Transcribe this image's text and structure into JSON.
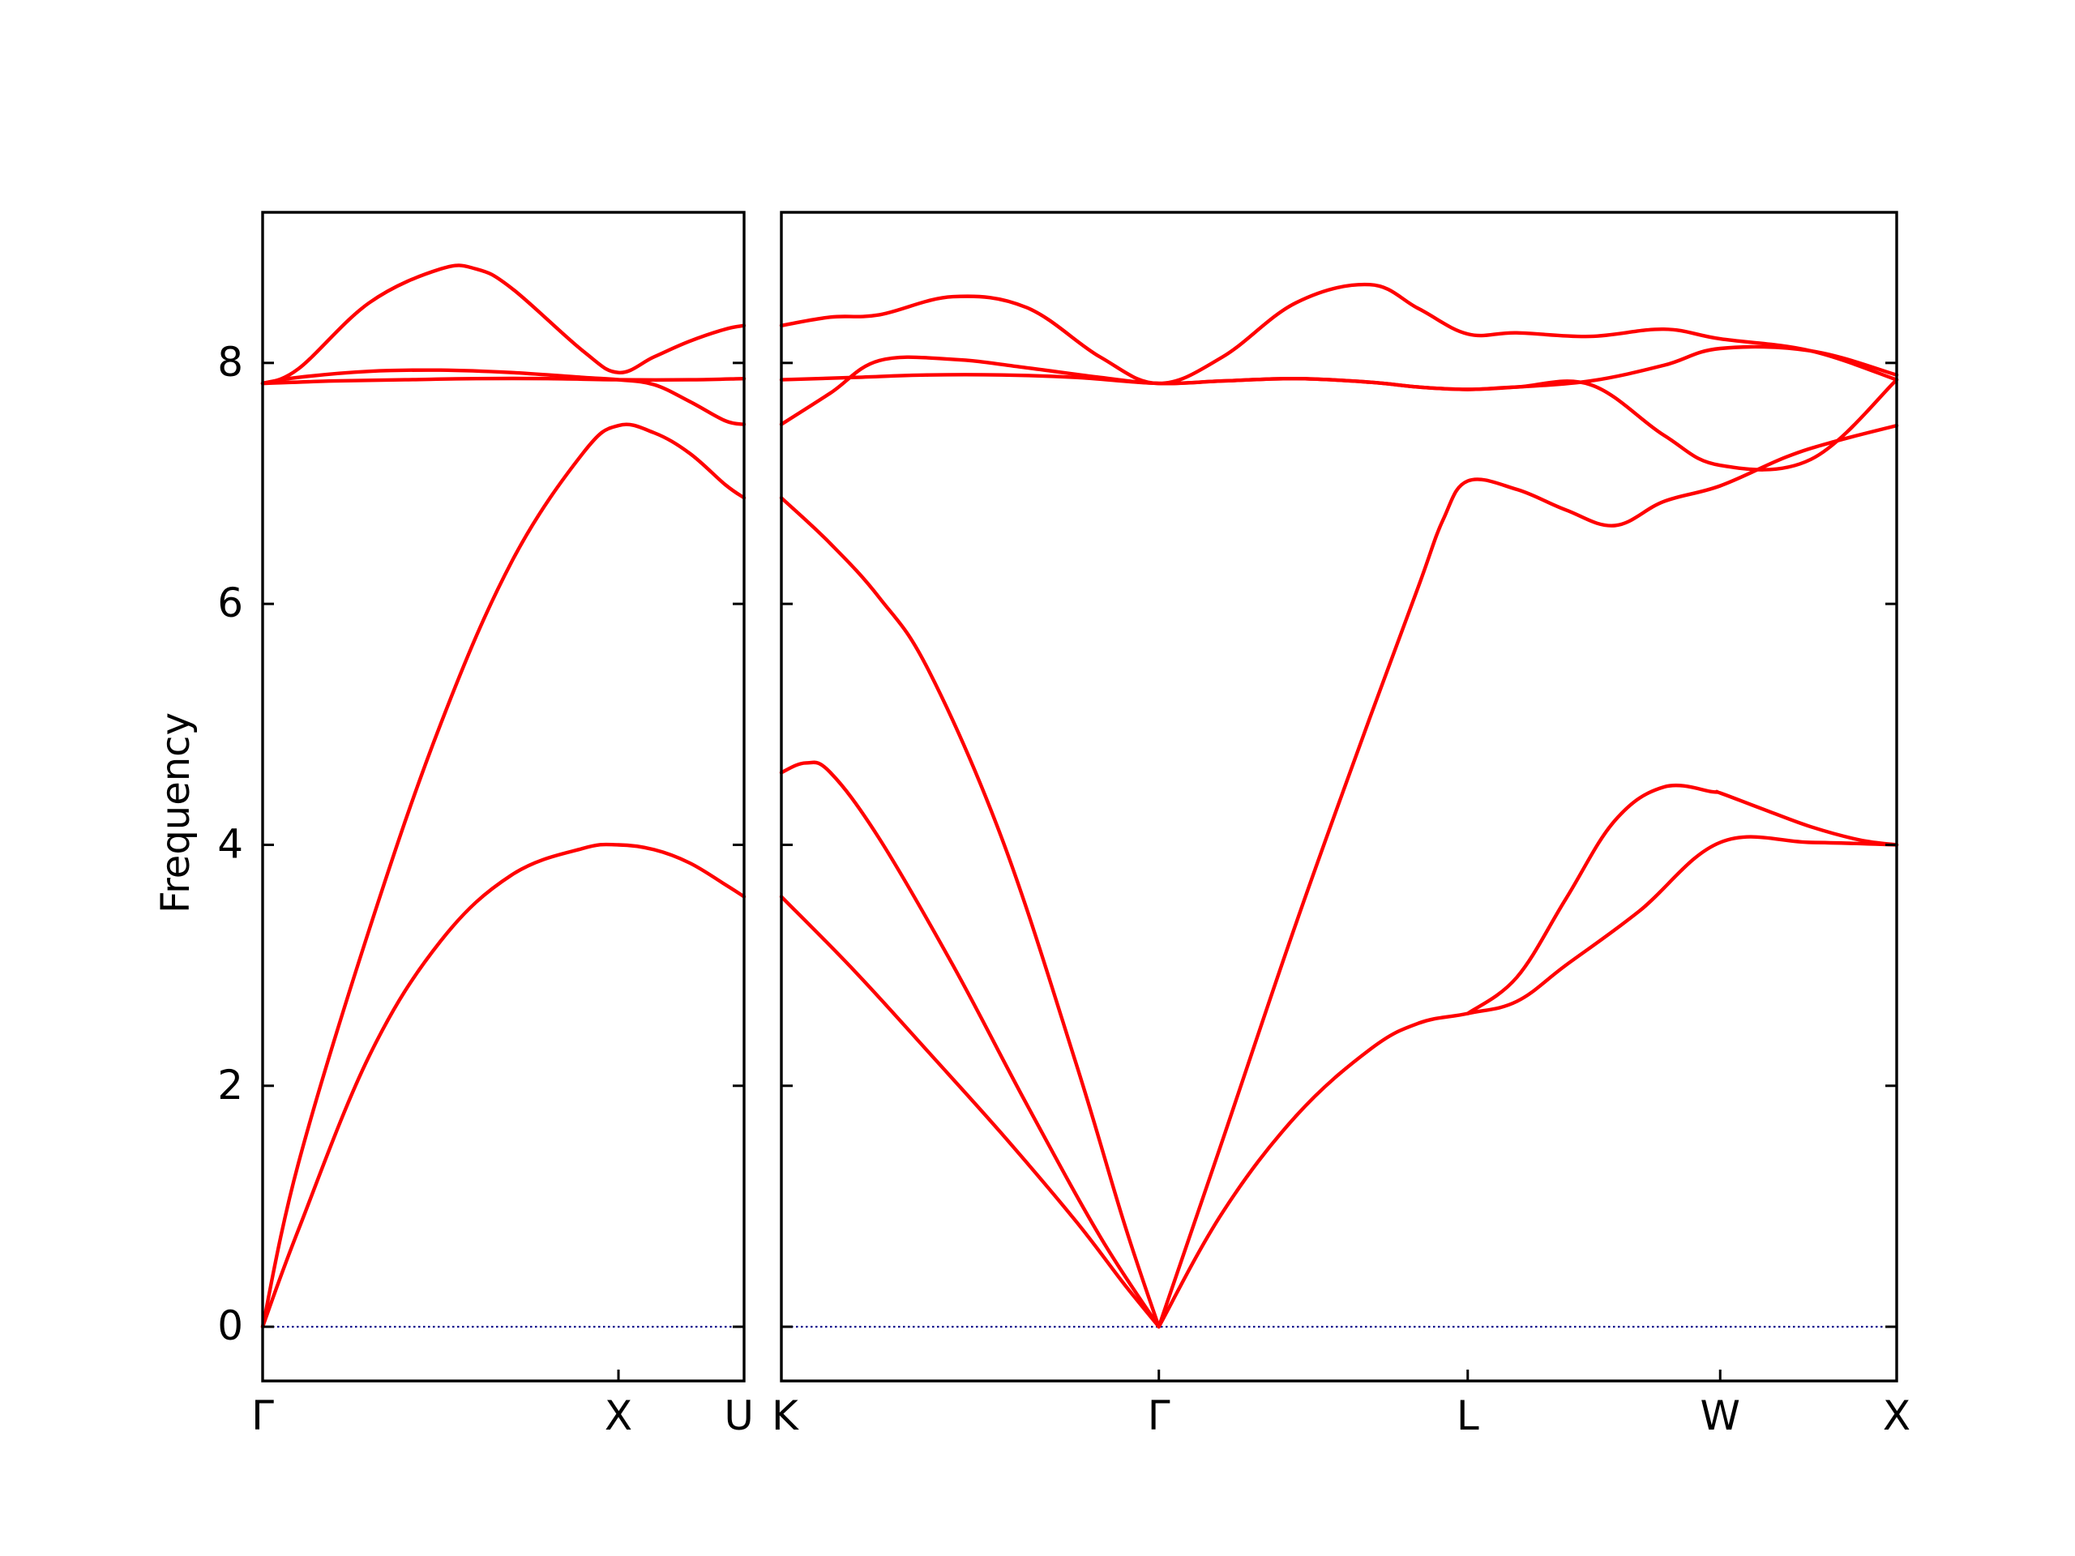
{
  "chart_data": {
    "type": "line",
    "ylabel": "Frequency",
    "ylim": [
      -0.45,
      9.25
    ],
    "yticks": [
      0,
      2,
      4,
      6,
      8
    ],
    "grid": false,
    "line_color": "#ff0000",
    "zero_line_color": "#00008b",
    "panels": [
      {
        "name": "left-panel",
        "xlim": [
          0,
          1.353
        ],
        "xticks": [
          {
            "x": 0,
            "label": "Γ"
          },
          {
            "x": 1.0,
            "label": "X"
          },
          {
            "x": 1.353,
            "label": "U"
          }
        ],
        "series": [
          {
            "x": [
              0,
              0.1,
              0.3,
              0.5,
              0.7,
              0.9,
              1.0,
              1.1,
              1.2,
              1.3,
              1.353
            ],
            "values": [
              0.0,
              0.8,
              2.25,
              3.2,
              3.75,
              3.97,
              4.0,
              3.96,
              3.85,
              3.67,
              3.57
            ]
          },
          {
            "x": [
              0,
              0.1,
              0.3,
              0.5,
              0.7,
              0.9,
              1.0,
              1.1,
              1.2,
              1.3,
              1.353
            ],
            "values": [
              0.0,
              1.35,
              3.3,
              5.0,
              6.35,
              7.25,
              7.48,
              7.42,
              7.25,
              6.99,
              6.88
            ]
          },
          {
            "x": [
              0,
              0.1,
              0.3,
              0.5,
              0.7,
              0.9,
              1.0,
              1.1,
              1.2,
              1.3,
              1.353
            ],
            "values": [
              7.83,
              7.88,
              7.93,
              7.94,
              7.92,
              7.88,
              7.86,
              7.82,
              7.68,
              7.52,
              7.49
            ]
          },
          {
            "x": [
              0,
              0.1,
              0.3,
              0.5,
              0.6,
              0.7,
              0.9,
              1.0,
              1.1,
              1.2,
              1.3,
              1.353
            ],
            "values": [
              7.83,
              7.95,
              8.5,
              8.78,
              8.78,
              8.62,
              8.1,
              7.92,
              8.05,
              8.18,
              8.28,
              8.31
            ]
          },
          {
            "x": [
              0,
              0.2,
              0.4,
              0.6,
              0.8,
              1.0,
              1.2,
              1.353
            ],
            "values": [
              7.83,
              7.85,
              7.86,
              7.87,
              7.87,
              7.86,
              7.86,
              7.87
            ]
          }
        ]
      },
      {
        "name": "right-panel",
        "xlim": [
          0,
          4.55
        ],
        "xticks": [
          {
            "x": 0,
            "label": "K"
          },
          {
            "x": 1.54,
            "label": "Γ"
          },
          {
            "x": 2.8,
            "label": "L"
          },
          {
            "x": 3.83,
            "label": "W"
          },
          {
            "x": 4.55,
            "label": "X"
          }
        ],
        "series": [
          {
            "x": [
              0,
              0.3,
              0.6,
              0.9,
              1.2,
              1.4,
              1.54
            ],
            "values": [
              3.57,
              2.95,
              2.28,
              1.6,
              0.88,
              0.35,
              0.0
            ]
          },
          {
            "x": [
              0,
              0.1,
              0.2,
              0.4,
              0.7,
              1.0,
              1.3,
              1.54
            ],
            "values": [
              4.6,
              4.68,
              4.6,
              4.05,
              3.0,
              1.85,
              0.75,
              0.0
            ]
          },
          {
            "x": [
              0,
              0.2,
              0.4,
              0.6,
              0.9,
              1.2,
              1.4,
              1.54
            ],
            "values": [
              6.88,
              6.5,
              6.05,
              5.45,
              4.05,
              2.2,
              0.85,
              0.0
            ]
          },
          {
            "x": [
              1.54,
              1.8,
              2.1,
              2.4,
              2.6,
              2.8,
              3.0,
              3.2,
              3.5,
              3.83,
              4.2,
              4.55
            ],
            "values": [
              0.0,
              0.95,
              1.75,
              2.3,
              2.52,
              2.6,
              2.7,
              3.0,
              3.45,
              4.02,
              4.02,
              4.0
            ]
          },
          {
            "x": [
              2.8,
              3.0,
              3.2,
              3.4,
              3.6,
              3.8,
              3.83,
              4.0,
              4.2,
              4.4,
              4.55
            ],
            "values": [
              2.6,
              2.9,
              3.55,
              4.2,
              4.48,
              4.44,
              4.43,
              4.3,
              4.15,
              4.04,
              4.0
            ]
          },
          {
            "x": [
              1.54,
              1.8,
              2.1,
              2.4,
              2.6,
              2.7,
              2.8,
              3.0,
              3.2,
              3.4,
              3.6,
              3.83,
              4.1,
              4.3,
              4.55
            ],
            "values": [
              0.0,
              1.55,
              3.35,
              5.05,
              6.15,
              6.7,
              7.02,
              6.95,
              6.78,
              6.65,
              6.85,
              6.98,
              7.22,
              7.35,
              7.48
            ]
          },
          {
            "x": [
              0,
              0.2,
              0.4,
              0.7,
              1.0,
              1.3,
              1.54,
              1.8,
              2.1,
              2.4,
              2.6,
              2.8,
              3.0,
              3.3,
              3.6,
              3.83,
              4.2,
              4.55
            ],
            "values": [
              7.49,
              7.75,
              8.02,
              8.03,
              7.96,
              7.88,
              7.83,
              7.85,
              7.87,
              7.84,
              7.8,
              7.78,
              7.8,
              7.82,
              7.4,
              7.15,
              7.2,
              7.86
            ]
          },
          {
            "x": [
              0,
              0.3,
              0.6,
              0.9,
              1.2,
              1.54,
              1.8,
              2.1,
              2.4,
              2.6,
              2.8,
              3.0,
              3.3,
              3.6,
              3.83,
              4.2,
              4.55
            ],
            "values": [
              7.86,
              7.88,
              7.9,
              7.9,
              7.88,
              7.83,
              7.85,
              7.87,
              7.84,
              7.8,
              7.78,
              7.8,
              7.85,
              7.98,
              8.12,
              8.1,
              7.9
            ]
          },
          {
            "x": [
              0,
              0.2,
              0.4,
              0.7,
              1.0,
              1.3,
              1.54,
              1.8,
              2.1,
              2.4,
              2.6,
              2.8,
              3.0,
              3.3,
              3.6,
              3.83,
              4.2,
              4.55
            ],
            "values": [
              8.31,
              8.38,
              8.4,
              8.55,
              8.46,
              8.05,
              7.83,
              8.05,
              8.5,
              8.65,
              8.45,
              8.24,
              8.25,
              8.22,
              8.28,
              8.2,
              8.1,
              7.86
            ]
          }
        ]
      }
    ]
  }
}
